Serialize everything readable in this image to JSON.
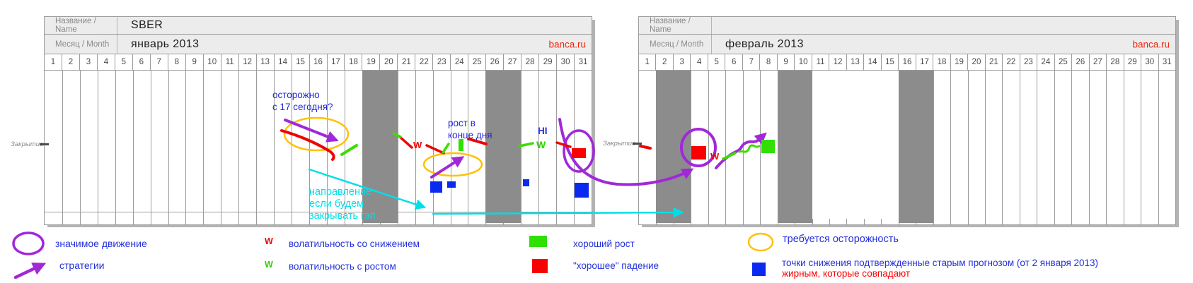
{
  "colors": {
    "brand_red": "#f3280f",
    "annotation_blue": "#2328d8",
    "annotation_cyan": "#00dfe8",
    "annotation_purple": "#a128d9",
    "annotation_yellow": "#ffc103",
    "bad_red": "#fb0000",
    "good_green": "#2fe000",
    "confirmed_blue": "#0b2af0",
    "weekend_gray": "#8c8c8c",
    "grid_border": "#9b9b9b",
    "header_bg": "#ececec"
  },
  "panels": [
    {
      "name_label": "Название / Name",
      "name_value": "SBER",
      "month_label": "Месяц / Month",
      "month_value": "январь 2013",
      "brand": "banca.ru",
      "close_label": "Закрытие",
      "days": [
        "1",
        "2",
        "3",
        "4",
        "5",
        "6",
        "7",
        "8",
        "9",
        "10",
        "11",
        "12",
        "13",
        "14",
        "15",
        "16",
        "17",
        "18",
        "19",
        "20",
        "21",
        "22",
        "23",
        "24",
        "25",
        "26",
        "27",
        "28",
        "29",
        "30",
        "31"
      ],
      "weekend_days": [
        19,
        20,
        26,
        27
      ],
      "hidden_gridlines": [],
      "has_footer_line": true
    },
    {
      "name_label": "Название / Name",
      "name_value": "",
      "month_label": "Месяц / Month",
      "month_value": "февраль 2013",
      "brand": "banca.ru",
      "close_label": "Закрытие",
      "days": [
        "1",
        "2",
        "3",
        "4",
        "5",
        "6",
        "7",
        "8",
        "9",
        "10",
        "11",
        "12",
        "13",
        "14",
        "15",
        "16",
        "17",
        "18",
        "19",
        "20",
        "21",
        "22",
        "23",
        "24",
        "25",
        "26",
        "27",
        "28",
        "29",
        "30",
        "31"
      ],
      "weekend_days": [
        2,
        3,
        9,
        10,
        16,
        17
      ],
      "hidden_gridlines": [
        10,
        11,
        12,
        13,
        14
      ],
      "has_footer_line": false
    }
  ],
  "annotations": {
    "caution_note": "осторожно\nс 17 сегодня?",
    "growth_note": "рост в\nконце дня",
    "hi_label": "HI",
    "volatility_letter": "W",
    "direction_note": "направление\nесли будем\nзакрывать гэп"
  },
  "marks": {
    "confirmed_down_days_january": [
      23,
      24,
      28,
      31
    ],
    "good_fall_days": {
      "january": [
        31
      ],
      "february": [
        4
      ]
    },
    "good_growth_days": {
      "february": [
        8
      ]
    },
    "significant_move_days": {
      "january": [
        31
      ],
      "february": [
        4
      ]
    },
    "caution_circled_days_january": [
      16,
      17,
      23,
      24
    ]
  },
  "legend": {
    "significant_move": "значимое движение",
    "strategies": "стратегии",
    "volatility_down": "волатильность со снижением",
    "volatility_up": "волатильность с ростом",
    "good_growth": "хороший рост",
    "good_fall": "\"хорошее\" падение",
    "caution": "требуется осторожность",
    "confirmed_points_line1": "точки снижения подтвержденные старым прогнозом (от 2 января 2013)",
    "confirmed_points_line2": "жирным, которые совпадают"
  }
}
